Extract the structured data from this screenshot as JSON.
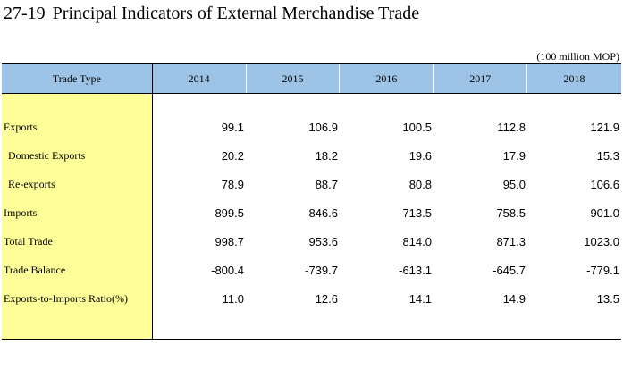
{
  "title": {
    "number": "27-19",
    "text": "Principal Indicators of External Merchandise Trade"
  },
  "unit": "(100 million MOP)",
  "table": {
    "header": {
      "label": "Trade Type",
      "years": [
        "2014",
        "2015",
        "2016",
        "2017",
        "2018"
      ]
    },
    "rows": [
      {
        "label": "Exports",
        "indent": false,
        "values": [
          "99.1",
          "106.9",
          "100.5",
          "112.8",
          "121.9"
        ]
      },
      {
        "label": "Domestic Exports",
        "indent": true,
        "values": [
          "20.2",
          "18.2",
          "19.6",
          "17.9",
          "15.3"
        ]
      },
      {
        "label": "Re-exports",
        "indent": true,
        "values": [
          "78.9",
          "88.7",
          "80.8",
          "95.0",
          "106.6"
        ]
      },
      {
        "label": "Imports",
        "indent": false,
        "values": [
          "899.5",
          "846.6",
          "713.5",
          "758.5",
          "901.0"
        ]
      },
      {
        "label": "Total Trade",
        "indent": false,
        "values": [
          "998.7",
          "953.6",
          "814.0",
          "871.3",
          "1023.0"
        ]
      },
      {
        "label": "Trade Balance",
        "indent": false,
        "values": [
          "-800.4",
          "-739.7",
          "-613.1",
          "-645.7",
          "-779.1"
        ]
      },
      {
        "label": "Exports-to-Imports Ratio(%)",
        "indent": false,
        "values": [
          "11.0",
          "12.6",
          "14.1",
          "14.9",
          "13.5"
        ]
      }
    ]
  },
  "colors": {
    "header_bg": "#9dc3e6",
    "label_col_bg": "#ffff99"
  }
}
